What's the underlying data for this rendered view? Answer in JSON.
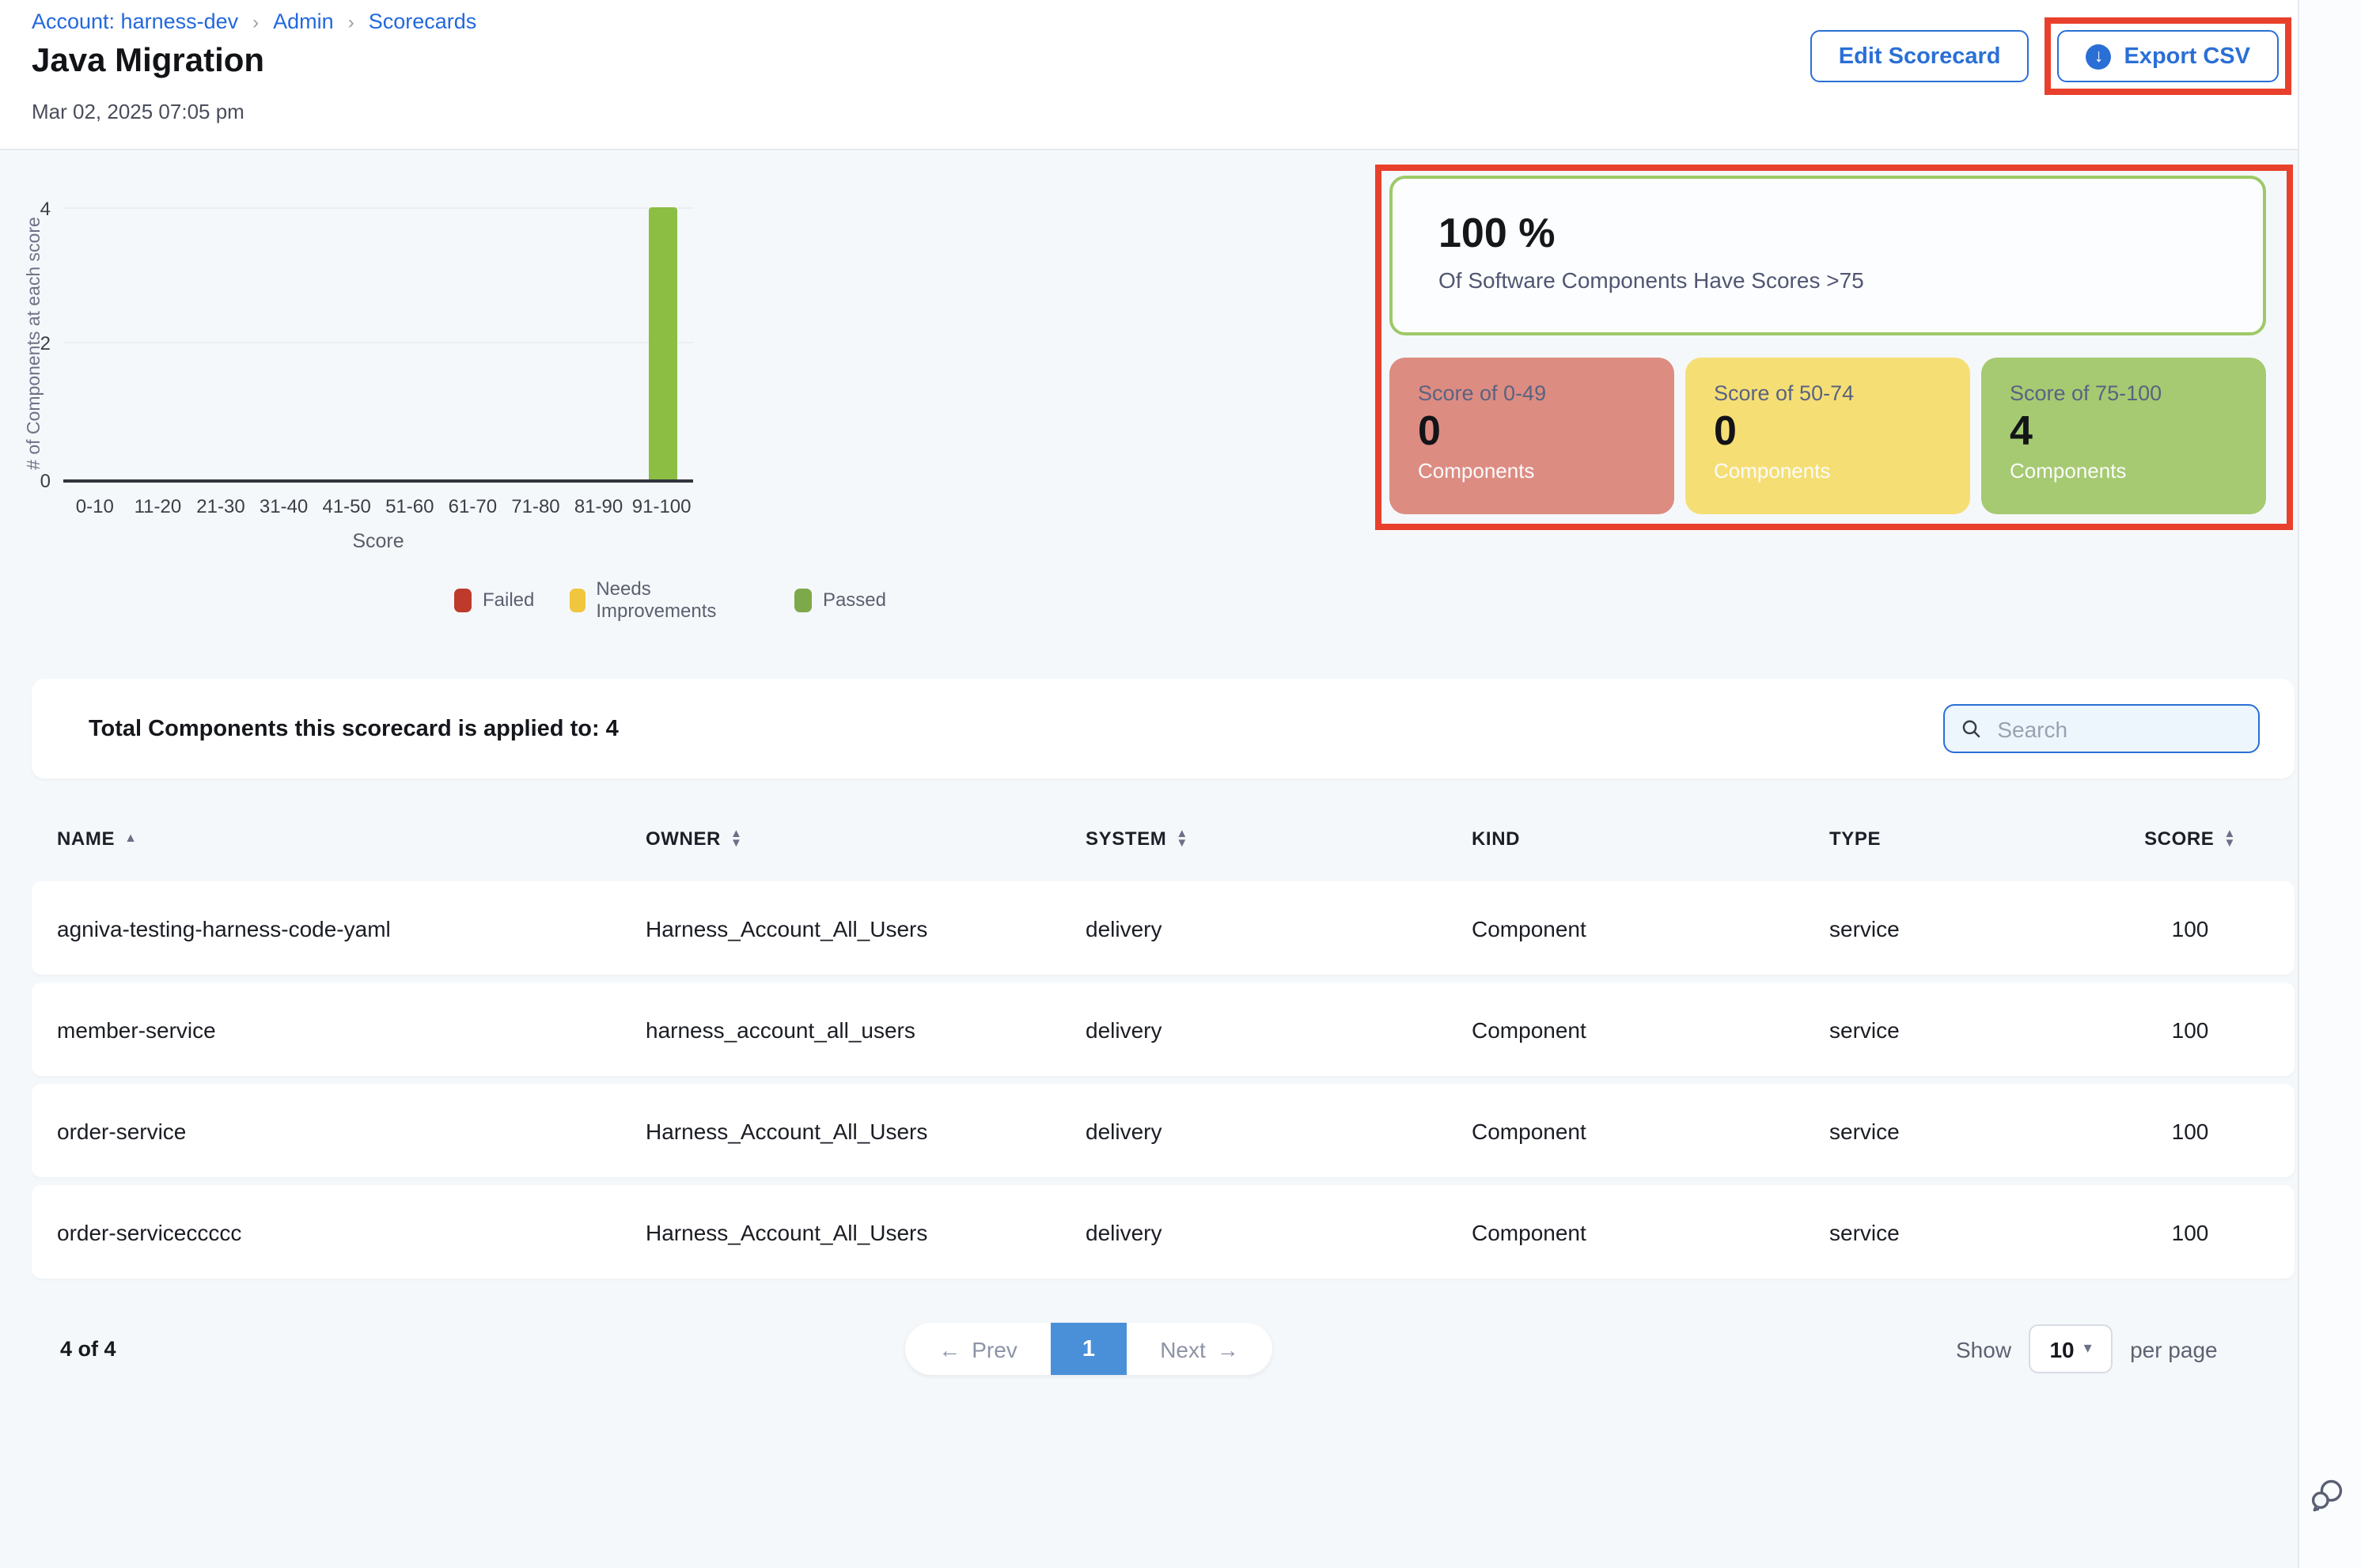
{
  "breadcrumb": {
    "items": [
      {
        "label": "Account: harness-dev"
      },
      {
        "label": "Admin"
      },
      {
        "label": "Scorecards"
      }
    ],
    "separator": "›"
  },
  "header": {
    "title": "Java Migration",
    "date": "Mar 02, 2025 07:05 pm",
    "edit_button": "Edit Scorecard",
    "export_button": "Export CSV"
  },
  "chart_data": {
    "type": "bar",
    "title": "",
    "categories": [
      "0-10",
      "11-20",
      "21-30",
      "31-40",
      "41-50",
      "51-60",
      "61-70",
      "71-80",
      "81-90",
      "91-100"
    ],
    "series": [
      {
        "name": "Failed",
        "color": "#be3a2b",
        "values": [
          0,
          0,
          0,
          0,
          0,
          0,
          0,
          0,
          0,
          0
        ]
      },
      {
        "name": "Needs Improvements",
        "color": "#efc63d",
        "values": [
          0,
          0,
          0,
          0,
          0,
          0,
          0,
          0,
          0,
          0
        ]
      },
      {
        "name": "Passed",
        "color": "#7ea94b",
        "values": [
          0,
          0,
          0,
          0,
          0,
          0,
          0,
          0,
          0,
          4
        ]
      }
    ],
    "xlabel": "Score",
    "ylabel": "# of Components at each score",
    "ylim": [
      0,
      4
    ],
    "yticks": [
      "0",
      "2",
      "4"
    ],
    "grid": "horizontal",
    "legend_position": "bottom"
  },
  "summary": {
    "percent": "100 %",
    "caption": "Of Software Components Have Scores >75",
    "cards": [
      {
        "label": "Score of 0-49",
        "value": "0",
        "unit": "Components",
        "color": "#dd8c82"
      },
      {
        "label": "Score of 50-74",
        "value": "0",
        "unit": "Components",
        "color": "#f5df75"
      },
      {
        "label": "Score of 75-100",
        "value": "4",
        "unit": "Components",
        "color": "#a6ca71"
      }
    ]
  },
  "table": {
    "total_label": "Total Components this scorecard is applied to: 4",
    "search_placeholder": "Search",
    "columns": [
      {
        "label": "NAME",
        "sort": "asc"
      },
      {
        "label": "OWNER",
        "sort": "both"
      },
      {
        "label": "SYSTEM",
        "sort": "both"
      },
      {
        "label": "KIND",
        "sort": "none"
      },
      {
        "label": "TYPE",
        "sort": "none"
      },
      {
        "label": "SCORE",
        "sort": "both"
      }
    ],
    "rows": [
      {
        "name": "agniva-testing-harness-code-yaml",
        "owner": "Harness_Account_All_Users",
        "system": "delivery",
        "kind": "Component",
        "type": "service",
        "score": "100"
      },
      {
        "name": "member-service",
        "owner": "harness_account_all_users",
        "system": "delivery",
        "kind": "Component",
        "type": "service",
        "score": "100"
      },
      {
        "name": "order-service",
        "owner": "Harness_Account_All_Users",
        "system": "delivery",
        "kind": "Component",
        "type": "service",
        "score": "100"
      },
      {
        "name": "order-serviceccccc",
        "owner": "Harness_Account_All_Users",
        "system": "delivery",
        "kind": "Component",
        "type": "service",
        "score": "100"
      }
    ]
  },
  "pagination": {
    "count": "4 of 4",
    "prev_label": "Prev",
    "current_page": "1",
    "next_label": "Next",
    "show_label": "Show",
    "page_size": "10",
    "per_page_label": "per page"
  },
  "colors": {
    "link_blue": "#2268de",
    "button_blue": "#2a6fd6",
    "annotation_red": "#e8402c",
    "bar_passed": "#8cbe44",
    "pagination_active": "#4a90d9",
    "content_bg": "#f5f8fa",
    "summary_border_green": "#9dc967"
  }
}
